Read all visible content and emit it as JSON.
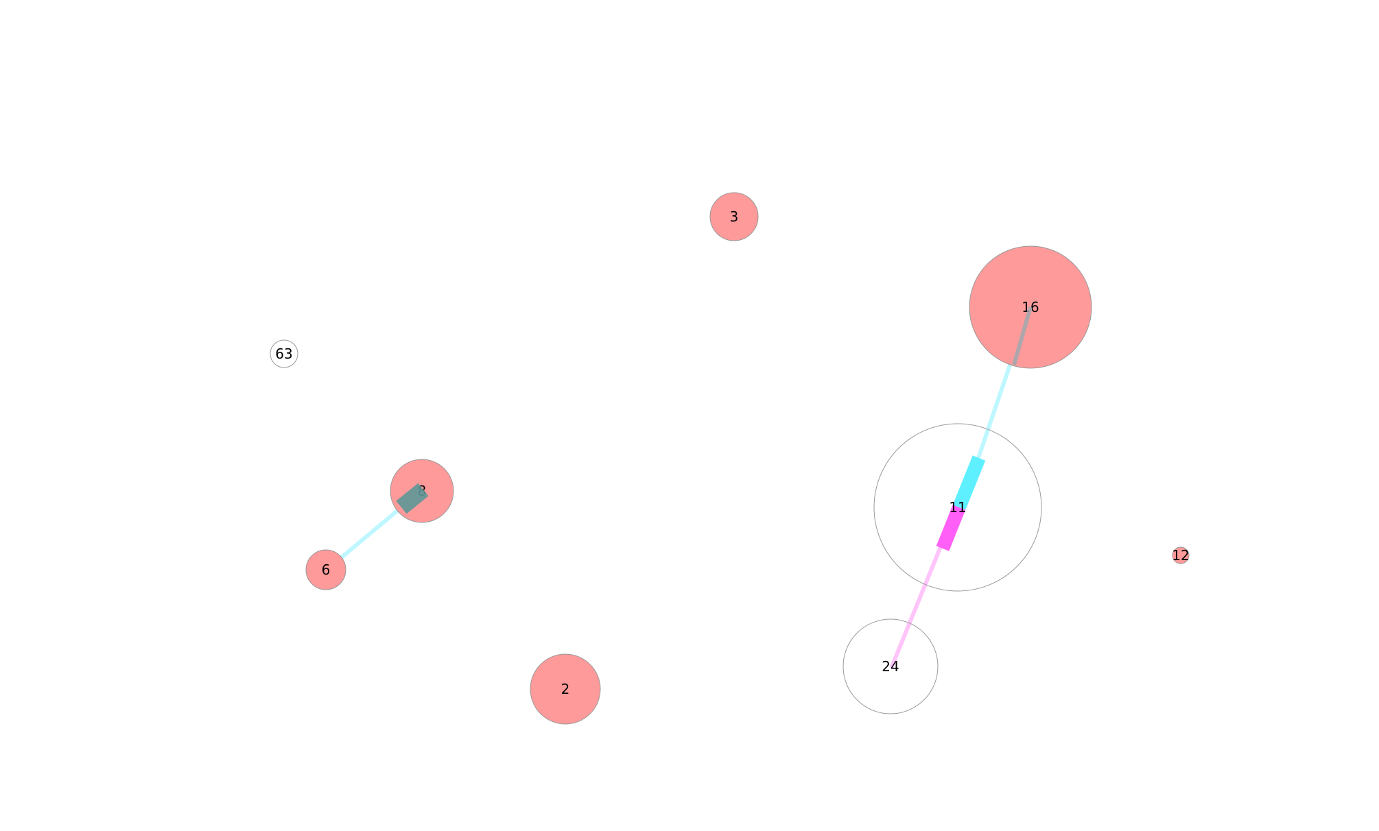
{
  "colors": {
    "filled_node": "#ff9a9a",
    "empty_node": "#ffffff",
    "node_stroke": "#999999",
    "edge_cyan": "#7ff1ff",
    "edge_cyan_head": "#5ff0ff",
    "edge_magenta": "#ff7ff5",
    "edge_magenta_head": "#ff5ff7"
  },
  "nodes": [
    {
      "id": "n63",
      "label": "63",
      "filled": false
    },
    {
      "id": "n3",
      "label": "3",
      "filled": true
    },
    {
      "id": "n16",
      "label": "16",
      "filled": true
    },
    {
      "id": "n8",
      "label": "8",
      "filled": true
    },
    {
      "id": "n6",
      "label": "6",
      "filled": true
    },
    {
      "id": "n11",
      "label": "11",
      "filled": false
    },
    {
      "id": "n12",
      "label": "12",
      "filled": true
    },
    {
      "id": "n24",
      "label": "24",
      "filled": false
    },
    {
      "id": "n2",
      "label": "2",
      "filled": true
    }
  ],
  "edges": [
    {
      "id": "e16-11",
      "from": "16",
      "to": "11",
      "color": "edge_cyan"
    },
    {
      "id": "e24-11",
      "from": "24",
      "to": "11",
      "color": "edge_magenta"
    },
    {
      "id": "e6-8",
      "from": "6",
      "to": "8",
      "color": "edge_cyan"
    }
  ]
}
